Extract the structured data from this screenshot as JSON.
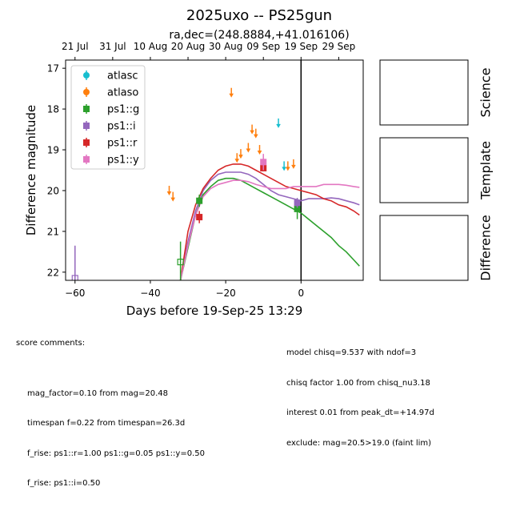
{
  "chart_data": {
    "type": "scatter",
    "title": "2025uxo -- PS25gun",
    "subtitle": "ra,dec=(248.8884,+41.016106)",
    "xlabel": "Days before 19-Sep-25 13:29",
    "ylabel": "Difference magnitude",
    "xlim": [
      -62.5,
      16.5
    ],
    "ylim": [
      22.2,
      16.8
    ],
    "y_inverted": true,
    "x_ticks": [
      -60,
      -40,
      -20,
      0
    ],
    "x_tick_labels": [
      "−60",
      "−40",
      "−20",
      "0"
    ],
    "y_ticks": [
      17,
      18,
      19,
      20,
      21,
      22
    ],
    "top_axis_ticks": [
      {
        "x": -60,
        "label": "21 Jul"
      },
      {
        "x": -50,
        "label": "31 Jul"
      },
      {
        "x": -40,
        "label": "10 Aug"
      },
      {
        "x": -30,
        "label": "20 Aug"
      },
      {
        "x": -20,
        "label": "30 Aug"
      },
      {
        "x": -10,
        "label": "09 Sep"
      },
      {
        "x": 0,
        "label": "19 Sep"
      },
      {
        "x": 10,
        "label": "29 Sep"
      }
    ],
    "vline_x": 0,
    "legend_position": "upper-left",
    "series": [
      {
        "name": "atlasc",
        "color": "#17becf",
        "marker": "circle",
        "detections": [],
        "upper_limits": [
          [
            -6,
            18.35
          ],
          [
            -4.5,
            19.4
          ]
        ]
      },
      {
        "name": "atlaso",
        "color": "#ff7f0e",
        "marker": "circle",
        "detections": [],
        "upper_limits": [
          [
            -35,
            20.0
          ],
          [
            -34,
            20.15
          ],
          [
            -18.5,
            17.6
          ],
          [
            -17,
            19.2
          ],
          [
            -16,
            19.1
          ],
          [
            -14,
            18.95
          ],
          [
            -13,
            18.5
          ],
          [
            -12,
            18.6
          ],
          [
            -11,
            19.0
          ],
          [
            -3.5,
            19.4
          ],
          [
            -2,
            19.35
          ]
        ]
      },
      {
        "name": "ps1::g",
        "color": "#2ca02c",
        "marker": "square",
        "detections": [
          [
            -27,
            20.25,
            0.15
          ],
          [
            -1,
            20.45,
            0.25
          ]
        ],
        "faint": [
          [
            -32,
            21.75,
            0.5
          ]
        ],
        "model": [
          [
            -32,
            22.2
          ],
          [
            -30,
            21.4
          ],
          [
            -28,
            20.6
          ],
          [
            -26,
            20.1
          ],
          [
            -24,
            19.9
          ],
          [
            -22,
            19.75
          ],
          [
            -20,
            19.7
          ],
          [
            -18,
            19.7
          ],
          [
            -16,
            19.75
          ],
          [
            -14,
            19.85
          ],
          [
            -12,
            19.95
          ],
          [
            -10,
            20.05
          ],
          [
            -8,
            20.15
          ],
          [
            -6,
            20.25
          ],
          [
            -4,
            20.35
          ],
          [
            -2,
            20.45
          ],
          [
            0,
            20.55
          ],
          [
            2,
            20.7
          ],
          [
            4,
            20.85
          ],
          [
            6,
            21.0
          ],
          [
            8,
            21.15
          ],
          [
            10,
            21.35
          ],
          [
            12,
            21.5
          ],
          [
            14,
            21.7
          ],
          [
            15.5,
            21.85
          ]
        ]
      },
      {
        "name": "ps1::i",
        "color": "#9467bd",
        "marker": "square",
        "detections": [
          [
            -1,
            20.3,
            0.12
          ]
        ],
        "faint": [
          [
            -60,
            22.15,
            0.8
          ]
        ],
        "model": [
          [
            -32,
            22.2
          ],
          [
            -30,
            21.25
          ],
          [
            -28,
            20.5
          ],
          [
            -26,
            20.0
          ],
          [
            -24,
            19.75
          ],
          [
            -22,
            19.6
          ],
          [
            -20,
            19.55
          ],
          [
            -18,
            19.55
          ],
          [
            -16,
            19.55
          ],
          [
            -14,
            19.6
          ],
          [
            -12,
            19.7
          ],
          [
            -10,
            19.85
          ],
          [
            -8,
            20.0
          ],
          [
            -6,
            20.1
          ],
          [
            -4,
            20.15
          ],
          [
            -2,
            20.2
          ],
          [
            0,
            20.25
          ],
          [
            2,
            20.2
          ],
          [
            4,
            20.2
          ],
          [
            6,
            20.2
          ],
          [
            8,
            20.18
          ],
          [
            10,
            20.2
          ],
          [
            12,
            20.25
          ],
          [
            14,
            20.3
          ],
          [
            15.5,
            20.35
          ]
        ]
      },
      {
        "name": "ps1::r",
        "color": "#d62728",
        "marker": "square",
        "detections": [
          [
            -27,
            20.65,
            0.15
          ],
          [
            -10,
            19.45,
            0.08
          ]
        ],
        "faint": [],
        "model": [
          [
            -32,
            22.2
          ],
          [
            -30,
            21.0
          ],
          [
            -28,
            20.35
          ],
          [
            -26,
            19.95
          ],
          [
            -24,
            19.7
          ],
          [
            -22,
            19.5
          ],
          [
            -20,
            19.4
          ],
          [
            -18,
            19.35
          ],
          [
            -16,
            19.35
          ],
          [
            -14,
            19.4
          ],
          [
            -12,
            19.5
          ],
          [
            -10,
            19.6
          ],
          [
            -8,
            19.7
          ],
          [
            -6,
            19.8
          ],
          [
            -4,
            19.9
          ],
          [
            -2,
            19.95
          ],
          [
            0,
            20.0
          ],
          [
            2,
            20.05
          ],
          [
            4,
            20.1
          ],
          [
            6,
            20.2
          ],
          [
            8,
            20.25
          ],
          [
            10,
            20.35
          ],
          [
            12,
            20.4
          ],
          [
            14,
            20.5
          ],
          [
            15.5,
            20.6
          ]
        ]
      },
      {
        "name": "ps1::y",
        "color": "#e377c2",
        "marker": "square",
        "detections": [
          [
            -10,
            19.3,
            0.2
          ]
        ],
        "faint": [],
        "model": [
          [
            -32,
            22.2
          ],
          [
            -30,
            21.35
          ],
          [
            -28,
            20.6
          ],
          [
            -26,
            20.15
          ],
          [
            -24,
            19.95
          ],
          [
            -22,
            19.85
          ],
          [
            -20,
            19.8
          ],
          [
            -18,
            19.75
          ],
          [
            -16,
            19.75
          ],
          [
            -14,
            19.78
          ],
          [
            -12,
            19.85
          ],
          [
            -10,
            19.9
          ],
          [
            -8,
            19.95
          ],
          [
            -6,
            19.95
          ],
          [
            -4,
            19.95
          ],
          [
            -2,
            19.9
          ],
          [
            0,
            19.9
          ],
          [
            2,
            19.9
          ],
          [
            4,
            19.9
          ],
          [
            6,
            19.85
          ],
          [
            8,
            19.85
          ],
          [
            10,
            19.85
          ],
          [
            12,
            19.87
          ],
          [
            14,
            19.9
          ],
          [
            15.5,
            19.92
          ]
        ]
      }
    ]
  },
  "panels": {
    "science": "Science",
    "template": "Template",
    "difference": "Difference"
  },
  "comments": {
    "header": "score comments:",
    "left": [
      "mag_factor=0.10 from mag=20.48",
      "timespan f=0.22 from timespan=26.3d",
      "f_rise: ps1::r=1.00 ps1::g=0.05 ps1::y=0.50",
      "f_rise: ps1::i=0.50"
    ],
    "right": [
      "model chisq=9.537 with ndof=3",
      "chisq factor 1.00 from chisq_nu3.18",
      "interest 0.01 from peak_dt=+14.97d",
      "exclude: mag=20.5>19.0 (faint lim)"
    ]
  }
}
